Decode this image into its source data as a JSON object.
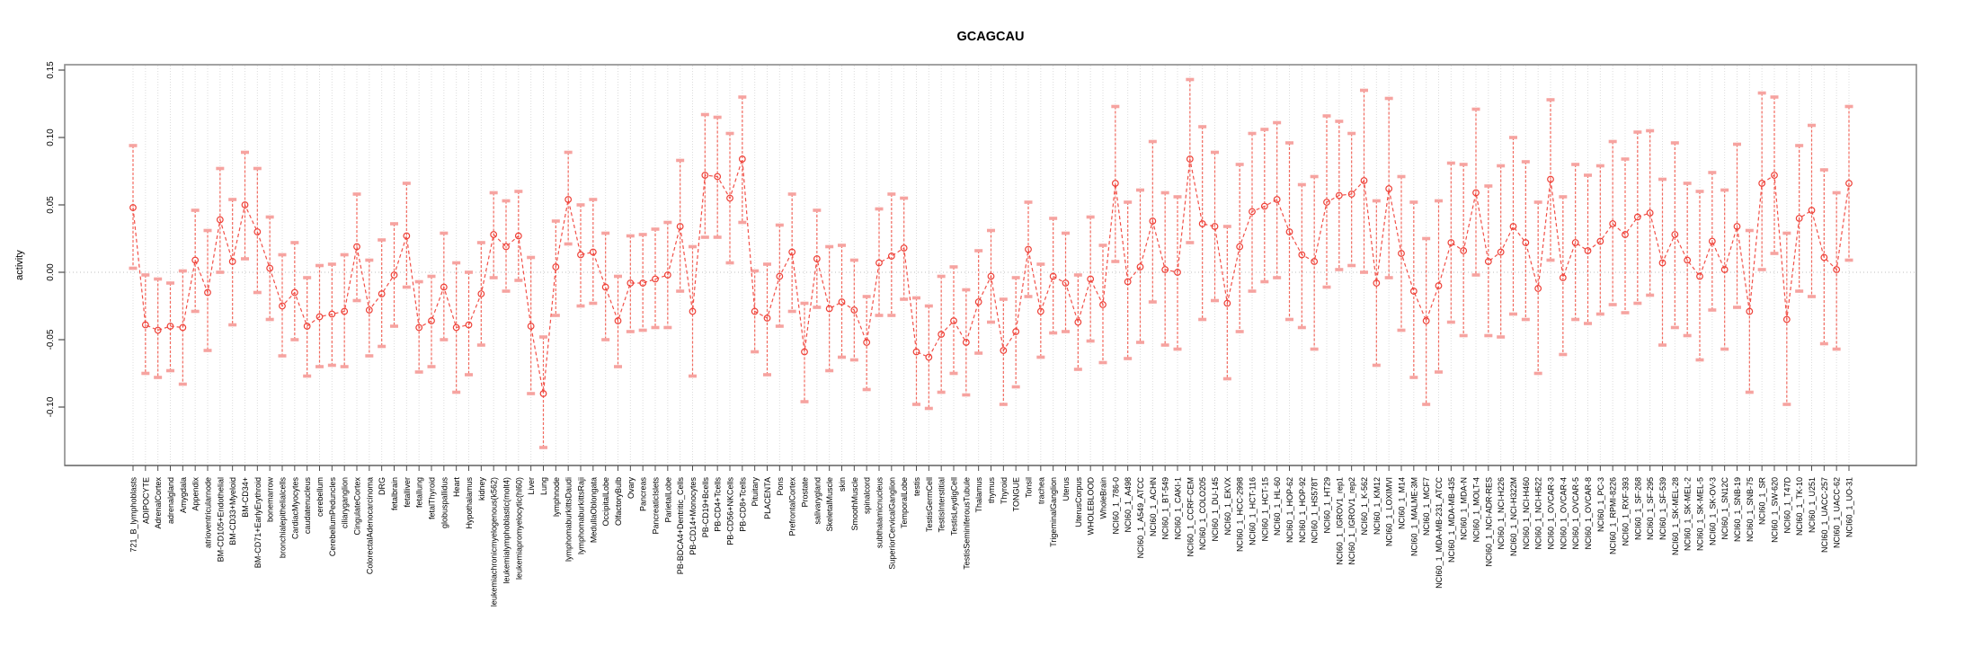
{
  "chart_data": {
    "type": "line",
    "subtype": "points-with-error-bars",
    "title": "GCAGCAU",
    "xlabel": "",
    "ylabel": "activity",
    "ylim": [
      -0.143,
      0.154
    ],
    "yticks": [
      0.15,
      0.1,
      0.05,
      0.0,
      -0.05,
      -0.1
    ],
    "yticklabels": [
      "0.15",
      "0.10",
      "0.05",
      "0.00",
      "-0.05",
      "-0.10"
    ],
    "grid": "vertical-dashed",
    "zero_line": true,
    "legend": "none",
    "colors": {
      "point": "#ee4037",
      "line": "#f25048",
      "errorbar_line": "#f26a5f",
      "errorbar_cap": "#f6a3a0",
      "gridline": "#dcdcdc",
      "zero_line": "#bfbfbf",
      "box": "#8c8c8c",
      "tick": "#4d4d4d"
    },
    "categories": [
      "721_B_lymphoblasts",
      "ADIPOCYTE",
      "AdrenalCortex",
      "adrenalgland",
      "Amygdala",
      "Appendix",
      "atrioventricularnode",
      "BM-CD105+Endothelial",
      "BM-CD33+Myeloid",
      "BM-CD34+",
      "BM-CD71+EarlyErythroid",
      "bonemarrow",
      "bronchialepithelialcells",
      "CardiacMyocytes",
      "caudatenucleus",
      "cerebellum",
      "CerebellumPeduncles",
      "ciliaryganglion",
      "CingulateCortex",
      "ColorectalAdenocarcinoma",
      "DRG",
      "fetalbrain",
      "fetalliver",
      "fetallung",
      "fetalThyroid",
      "globuspallidus",
      "Heart",
      "Hypothalamus",
      "kidney",
      "leukemiachronicmyelogenous(k562)",
      "leukemialymphoblastic(molt4)",
      "leukemiapromyelocytic(hl60)",
      "Liver",
      "Lung",
      "lymphnode",
      "lymphomaburkittsDaudi",
      "lymphomaburkittsRaji",
      "MedullaOblongata",
      "OccipitalLobe",
      "OlfactoryBulb",
      "Ovary",
      "Pancreas",
      "PancreaticIslets",
      "ParietalLobe",
      "PB-BDCA4+Dentritic_Cells",
      "PB-CD14+Monocytes",
      "PB-CD19+Bcells",
      "PB-CD4+Tcells",
      "PB-CD56+NKCells",
      "PB-CD8+Tcells",
      "Pituitary",
      "PLACENTA",
      "Pons",
      "PrefrontalCortex",
      "Prostate",
      "salivarygland",
      "SkeletalMuscle",
      "skin",
      "SmoothMuscle",
      "spinalcord",
      "subthalamicnucleus",
      "SuperiorCervicalGanglion",
      "TemporalLobe",
      "testis",
      "TestisGermCell",
      "TestisInterstitial",
      "TestisLeydigCell",
      "TestisSeminiferousTubule",
      "Thalamus",
      "thymus",
      "Thyroid",
      "TONGUE",
      "Tonsil",
      "trachea",
      "TrigeminalGanglion",
      "Uterus",
      "UterusCorpus",
      "WHOLEBLOOD",
      "WholeBrain",
      "NCI60_1_786-0",
      "NCI60_1_A498",
      "NCI60_1_A549_ATCC",
      "NCI60_1_ACHN",
      "NCI60_1_BT-549",
      "NCI60_1_CAKI-1",
      "NCI60_1_CCRF-CEM",
      "NCI60_1_COLO205",
      "NCI60_1_DU-145",
      "NCI60_1_EKVX",
      "NCI60_1_HCC-2998",
      "NCI60_1_HCT-116",
      "NCI60_1_HCT-15",
      "NCI60_1_HL-60",
      "NCI60_1_HOP-62",
      "NCI60_1_HOP-92",
      "NCI60_1_HS578T",
      "NCI60_1_HT29",
      "NCI60_1_IGROV1_rep1",
      "NCI60_1_IGROV1_rep2",
      "NCI60_1_K-562",
      "NCI60_1_KM12",
      "NCI60_1_LOXIMVI",
      "NCI60_1_M14",
      "NCI60_1_MALME-3M",
      "NCI60_1_MCF7",
      "NCI60_1_MDA-MB-231_ATCC",
      "NCI60_1_MDA-MB-435",
      "NCI60_1_MDA-N",
      "NCI60_1_MOLT-4",
      "NCI60_1_NCI-ADR-RES",
      "NCI60_1_NCI-H226",
      "NCI60_1_NCI-H322M",
      "NCI60_1_NCI-H460",
      "NCI60_1_NCI-H522",
      "NCI60_1_OVCAR-3",
      "NCI60_1_OVCAR-4",
      "NCI60_1_OVCAR-5",
      "NCI60_1_OVCAR-8",
      "NCI60_1_PC-3",
      "NCI60_1_RPMI-8226",
      "NCI60_1_RXF-393",
      "NCI60_1_SF-268",
      "NCI60_1_SF-295",
      "NCI60_1_SF-539",
      "NCI60_1_SK-MEL-28",
      "NCI60_1_SK-MEL-2",
      "NCI60_1_SK-MEL-5",
      "NCI60_1_SK-OV-3",
      "NCI60_1_SN12C",
      "NCI60_1_SNB-19",
      "NCI60_1_SNB-75",
      "NCI60_1_SR",
      "NCI60_1_SW-620",
      "NCI60_1_T47D",
      "NCI60_1_TK-10",
      "NCI60_1_U251",
      "NCI60_1_UACC-257",
      "NCI60_1_UACC-62",
      "NCI60_1_UO-31"
    ],
    "series": [
      {
        "name": "activity",
        "values": [
          0.048,
          -0.039,
          -0.043,
          -0.04,
          -0.041,
          0.009,
          -0.015,
          0.039,
          0.008,
          0.05,
          0.03,
          0.003,
          -0.025,
          -0.015,
          -0.04,
          -0.033,
          -0.031,
          -0.029,
          0.019,
          -0.028,
          -0.016,
          -0.002,
          0.027,
          -0.041,
          -0.036,
          -0.011,
          -0.041,
          -0.039,
          -0.016,
          0.028,
          0.019,
          0.027,
          -0.04,
          -0.09,
          0.004,
          0.054,
          0.013,
          0.015,
          -0.011,
          -0.036,
          -0.008,
          -0.008,
          -0.005,
          -0.002,
          0.034,
          -0.029,
          0.072,
          0.071,
          0.055,
          0.084,
          -0.029,
          -0.034,
          -0.003,
          0.015,
          -0.059,
          0.01,
          -0.027,
          -0.022,
          -0.028,
          -0.052,
          0.007,
          0.012,
          0.018,
          -0.059,
          -0.063,
          -0.046,
          -0.036,
          -0.052,
          -0.022,
          -0.003,
          -0.058,
          -0.044,
          0.017,
          -0.029,
          -0.003,
          -0.008,
          -0.037,
          -0.005,
          -0.024,
          0.066,
          -0.007,
          0.004,
          0.038,
          0.002,
          0.0,
          0.084,
          0.036,
          0.034,
          -0.023,
          0.019,
          0.045,
          0.049,
          0.054,
          0.03,
          0.013,
          0.008,
          0.052,
          0.057,
          0.058,
          0.068,
          -0.008,
          0.062,
          0.014,
          -0.014,
          -0.036,
          -0.01,
          0.022,
          0.016,
          0.059,
          0.008,
          0.015,
          0.034,
          0.022,
          -0.012,
          0.069,
          -0.004,
          0.022,
          0.016,
          0.023,
          0.036,
          0.028,
          0.041,
          0.044,
          0.007,
          0.028,
          0.009,
          -0.003,
          0.023,
          0.002,
          0.034,
          -0.029,
          0.066,
          0.072,
          -0.035,
          0.04,
          0.046,
          0.011,
          0.002,
          0.066
        ],
        "err_low": [
          0.003,
          -0.075,
          -0.078,
          -0.073,
          -0.083,
          -0.029,
          -0.058,
          0.0,
          -0.039,
          0.01,
          -0.015,
          -0.035,
          -0.062,
          -0.05,
          -0.077,
          -0.07,
          -0.069,
          -0.07,
          -0.021,
          -0.062,
          -0.055,
          -0.04,
          -0.011,
          -0.074,
          -0.07,
          -0.05,
          -0.089,
          -0.076,
          -0.054,
          -0.004,
          -0.014,
          -0.006,
          -0.09,
          -0.13,
          -0.032,
          0.021,
          -0.025,
          -0.023,
          -0.05,
          -0.07,
          -0.044,
          -0.043,
          -0.041,
          -0.041,
          -0.014,
          -0.077,
          0.026,
          0.026,
          0.007,
          0.037,
          -0.059,
          -0.076,
          -0.04,
          -0.029,
          -0.096,
          -0.026,
          -0.073,
          -0.063,
          -0.065,
          -0.087,
          -0.032,
          -0.032,
          -0.02,
          -0.098,
          -0.101,
          -0.089,
          -0.075,
          -0.091,
          -0.06,
          -0.037,
          -0.098,
          -0.085,
          -0.018,
          -0.063,
          -0.045,
          -0.044,
          -0.072,
          -0.051,
          -0.067,
          0.008,
          -0.064,
          -0.052,
          -0.022,
          -0.054,
          -0.057,
          0.022,
          -0.035,
          -0.021,
          -0.079,
          -0.044,
          -0.014,
          -0.007,
          -0.004,
          -0.035,
          -0.041,
          -0.057,
          -0.011,
          0.002,
          0.005,
          0.0,
          -0.069,
          -0.004,
          -0.043,
          -0.078,
          -0.098,
          -0.074,
          -0.037,
          -0.047,
          -0.002,
          -0.047,
          -0.048,
          -0.031,
          -0.035,
          -0.075,
          0.009,
          -0.061,
          -0.035,
          -0.038,
          -0.031,
          -0.024,
          -0.03,
          -0.023,
          -0.017,
          -0.054,
          -0.041,
          -0.047,
          -0.065,
          -0.028,
          -0.057,
          -0.026,
          -0.089,
          0.002,
          0.014,
          -0.098,
          -0.014,
          -0.018,
          -0.053,
          -0.057,
          0.009
        ],
        "err_high": [
          0.094,
          -0.002,
          -0.005,
          -0.008,
          0.001,
          0.046,
          0.031,
          0.077,
          0.054,
          0.089,
          0.077,
          0.041,
          0.013,
          0.022,
          -0.004,
          0.005,
          0.006,
          0.013,
          0.058,
          0.009,
          0.024,
          0.036,
          0.066,
          -0.007,
          -0.003,
          0.029,
          0.007,
          0.0,
          0.022,
          0.059,
          0.053,
          0.06,
          0.011,
          -0.048,
          0.038,
          0.089,
          0.05,
          0.054,
          0.029,
          -0.003,
          0.027,
          0.028,
          0.032,
          0.037,
          0.083,
          0.019,
          0.117,
          0.115,
          0.103,
          0.13,
          0.001,
          0.006,
          0.035,
          0.058,
          -0.023,
          0.046,
          0.019,
          0.02,
          0.009,
          -0.018,
          0.047,
          0.058,
          0.055,
          -0.019,
          -0.025,
          -0.003,
          0.004,
          -0.013,
          0.016,
          0.031,
          -0.02,
          -0.004,
          0.052,
          0.006,
          0.04,
          0.029,
          -0.002,
          0.041,
          0.02,
          0.123,
          0.052,
          0.061,
          0.097,
          0.059,
          0.056,
          0.143,
          0.108,
          0.089,
          0.034,
          0.08,
          0.103,
          0.106,
          0.111,
          0.096,
          0.065,
          0.071,
          0.116,
          0.112,
          0.103,
          0.135,
          0.053,
          0.129,
          0.071,
          0.052,
          0.025,
          0.053,
          0.081,
          0.08,
          0.121,
          0.064,
          0.079,
          0.1,
          0.082,
          0.052,
          0.128,
          0.056,
          0.08,
          0.072,
          0.079,
          0.097,
          0.084,
          0.104,
          0.105,
          0.069,
          0.096,
          0.066,
          0.06,
          0.074,
          0.061,
          0.095,
          0.031,
          0.133,
          0.13,
          0.029,
          0.094,
          0.109,
          0.076,
          0.059,
          0.123
        ]
      }
    ]
  }
}
